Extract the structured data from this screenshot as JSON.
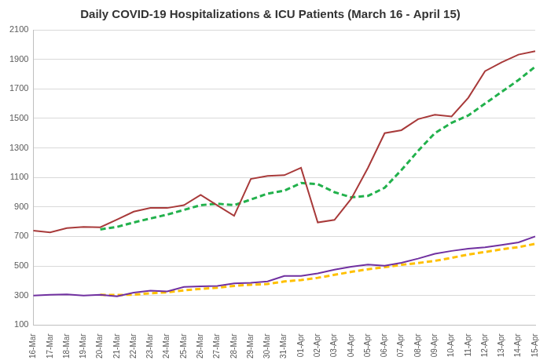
{
  "chart_data": {
    "type": "line",
    "title": "Daily COVID-19 Hospitalizations & ICU Patients (March 16 - April 15)",
    "categories": [
      "16-Mar",
      "17-Mar",
      "18-Mar",
      "19-Mar",
      "20-Mar",
      "21-Mar",
      "22-Mar",
      "23-Mar",
      "24-Mar",
      "25-Mar",
      "26-Mar",
      "27-Mar",
      "28-Mar",
      "29-Mar",
      "30-Mar",
      "31-Mar",
      "01-Apr",
      "02-Apr",
      "03-Apr",
      "04-Apr",
      "05-Apr",
      "06-Apr",
      "07-Apr",
      "08-Apr",
      "09-Apr",
      "10-Apr",
      "11-Apr",
      "12-Apr",
      "13-Apr",
      "14-Apr",
      "15-Apr"
    ],
    "series": [
      {
        "color": "#a83a3a",
        "line_style": "solid",
        "values": [
          740,
          728,
          757,
          765,
          762,
          815,
          868,
          893,
          893,
          912,
          982,
          910,
          840,
          1090,
          1110,
          1115,
          1165,
          795,
          812,
          955,
          1165,
          1400,
          1420,
          1495,
          1525,
          1513,
          1640,
          1820,
          1880,
          1932,
          1955
        ]
      },
      {
        "color": "#22b14c",
        "line_style": "dashed",
        "values": [
          null,
          null,
          null,
          null,
          748,
          765,
          795,
          822,
          848,
          880,
          912,
          922,
          912,
          950,
          990,
          1010,
          1062,
          1055,
          1000,
          965,
          975,
          1030,
          1150,
          1280,
          1400,
          1470,
          1520,
          1600,
          1680,
          1760,
          1850
        ]
      },
      {
        "color": "#7030a0",
        "line_style": "solid",
        "values": [
          300,
          305,
          308,
          300,
          305,
          295,
          320,
          333,
          328,
          358,
          362,
          365,
          382,
          386,
          395,
          432,
          432,
          450,
          475,
          495,
          510,
          502,
          522,
          550,
          583,
          602,
          617,
          627,
          643,
          660,
          700
        ]
      },
      {
        "color": "#ffc000",
        "line_style": "dashed",
        "values": [
          null,
          null,
          null,
          null,
          305,
          303,
          306,
          315,
          322,
          335,
          345,
          353,
          365,
          373,
          378,
          395,
          405,
          420,
          440,
          460,
          478,
          492,
          508,
          520,
          535,
          555,
          578,
          595,
          613,
          628,
          650
        ]
      }
    ],
    "ylim": [
      100,
      2100
    ],
    "yticks": [
      100,
      300,
      500,
      700,
      900,
      1100,
      1300,
      1500,
      1700,
      1900,
      2100
    ],
    "grid": "y"
  }
}
